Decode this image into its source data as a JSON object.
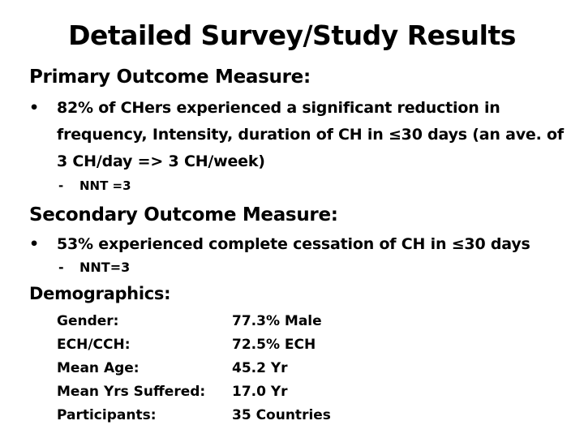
{
  "title": "Detailed Survey/Study Results",
  "primary": {
    "heading": "Primary Outcome Measure:",
    "bullet": "•",
    "text": "82% of CHers experienced a significant reduction in frequency, Intensity, duration of CH in ≤30 days (an ave. of 3 CH/day => 3 CH/week)",
    "sub_dash": "-",
    "sub_text": "NNT =3"
  },
  "secondary": {
    "heading": "Secondary Outcome Measure:",
    "bullet": "•",
    "text": "53% experienced complete cessation of CH in ≤30 days",
    "sub_dash": "-",
    "sub_text": "NNT=3"
  },
  "demographics": {
    "heading": "Demographics:",
    "rows": [
      {
        "label": "Gender:",
        "value": "77.3% Male"
      },
      {
        "label": "ECH/CCH:",
        "value": "72.5% ECH"
      },
      {
        "label": "Mean Age:",
        "value": "45.2 Yr"
      },
      {
        "label": "Mean Yrs Suffered:",
        "value": "17.0 Yr"
      },
      {
        "label": "Participants:",
        "value": "35 Countries"
      }
    ]
  }
}
